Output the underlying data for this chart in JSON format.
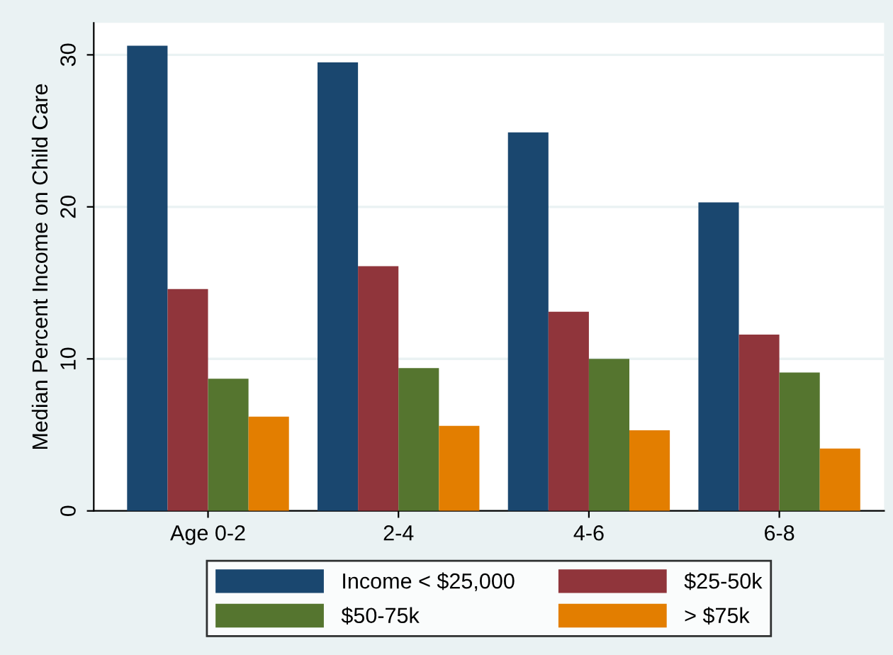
{
  "chart_data": {
    "type": "bar",
    "ylabel": "Median Percent Income on Child Care",
    "categories": [
      "Age 0-2",
      "2-4",
      "4-6",
      "6-8"
    ],
    "series": [
      {
        "name": "Income < $25,000",
        "color": "#1a476f",
        "values": [
          30.6,
          29.5,
          24.9,
          20.3
        ]
      },
      {
        "name": "$25-50k",
        "color": "#90353b",
        "values": [
          14.6,
          16.1,
          13.1,
          11.6
        ]
      },
      {
        "name": "$50-75k",
        "color": "#55752f",
        "values": [
          8.7,
          9.4,
          10.0,
          9.1
        ]
      },
      {
        "name": "> $75k",
        "color": "#e37e00",
        "values": [
          6.2,
          5.6,
          5.3,
          4.1
        ]
      }
    ],
    "ylim": [
      0,
      32.1
    ],
    "yticks": [
      0,
      10,
      20,
      30
    ],
    "grid": "y",
    "legend": "bottom"
  }
}
